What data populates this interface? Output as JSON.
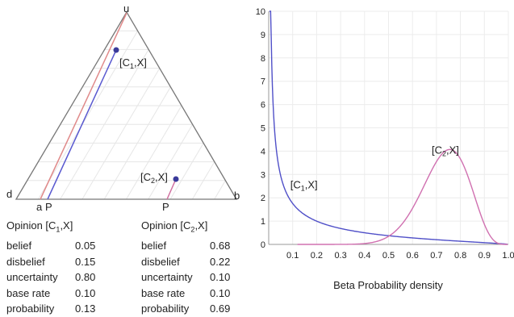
{
  "triangle": {
    "vertex_u": "u",
    "vertex_d": "d",
    "vertex_b": "b",
    "label_a": "a",
    "label_P_left": "P",
    "label_P_bottom": "P",
    "opinion1_label": {
      "pre": "[C",
      "sub": "1",
      "post": ",X]"
    },
    "opinion2_label": {
      "pre": "[C",
      "sub": "2",
      "post": ",X]"
    },
    "colors": {
      "frame": "#777777",
      "grid": "#e6e6e6",
      "point": "#3a3a9a",
      "red_line": "#e08a8a",
      "blue_line": "#5a5ad0",
      "pink_line": "#d070a0"
    }
  },
  "opinion_tables": [
    {
      "title": {
        "pre": "Opinion [C",
        "sub": "1",
        "post": ",X]"
      },
      "rows": [
        {
          "label": "belief",
          "value": "0.05"
        },
        {
          "label": "disbelief",
          "value": "0.15"
        },
        {
          "label": "uncertainty",
          "value": "0.80"
        },
        {
          "label": "base rate",
          "value": "0.10"
        },
        {
          "label": "probability",
          "value": "0.13"
        }
      ]
    },
    {
      "title": {
        "pre": "Opinion  [C",
        "sub": "2",
        "post": ",X]"
      },
      "rows": [
        {
          "label": "belief",
          "value": "0.68"
        },
        {
          "label": "disbelief",
          "value": "0.22"
        },
        {
          "label": "uncertainty",
          "value": "0.10"
        },
        {
          "label": "base rate",
          "value": "0.10"
        },
        {
          "label": "probability",
          "value": "0.69"
        }
      ]
    }
  ],
  "chart_data": {
    "type": "line",
    "title": "Beta Probability density",
    "xlabel": "",
    "ylabel": "",
    "xlim": [
      0,
      1.0
    ],
    "ylim": [
      0,
      10
    ],
    "x_ticks": [
      "0.1",
      "0.2",
      "0.3",
      "0.4",
      "0.5",
      "0.6",
      "0.7",
      "0.8",
      "0.9",
      "1.0"
    ],
    "y_ticks": [
      "0",
      "1",
      "2",
      "3",
      "4",
      "5",
      "6",
      "7",
      "8",
      "9",
      "10"
    ],
    "grid": true,
    "series": [
      {
        "color": "#5050c8",
        "beta": [
          0.3125,
          1.75
        ],
        "x_range": [
          0.003,
          0.997
        ]
      },
      {
        "color": "#d070b0",
        "beta": [
          14.6,
          5.4
        ],
        "x_range": [
          0.12,
          0.997
        ]
      }
    ],
    "annotations": [
      {
        "pre": "[C",
        "sub": "1",
        "post": ",X]",
        "x": 0.09,
        "y": 2.4
      },
      {
        "pre": "[C",
        "sub": "2",
        "post": ",X]",
        "x": 0.68,
        "y": 3.9
      }
    ]
  }
}
